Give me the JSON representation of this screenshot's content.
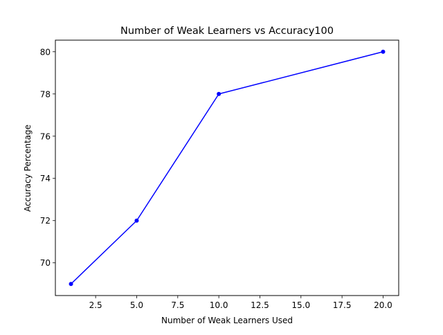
{
  "chart_data": {
    "type": "line",
    "title": "Number of Weak Learners vs Accuracy100",
    "xlabel": "Number of Weak Learners Used",
    "ylabel": "Accuracy Percentage",
    "x": [
      1,
      5,
      10,
      20
    ],
    "series": [
      {
        "values": [
          69,
          72,
          78,
          80
        ],
        "color": "#0000ff",
        "marker": "circle"
      }
    ],
    "xlim": [
      0.05,
      20.95
    ],
    "ylim": [
      68.45,
      80.55
    ],
    "xticks": [
      2.5,
      5.0,
      7.5,
      10.0,
      12.5,
      15.0,
      17.5,
      20.0
    ],
    "xtick_labels": [
      "2.5",
      "5.0",
      "7.5",
      "10.0",
      "12.5",
      "15.0",
      "17.5",
      "20.0"
    ],
    "yticks": [
      70,
      72,
      74,
      76,
      78,
      80
    ],
    "ytick_labels": [
      "70",
      "72",
      "74",
      "76",
      "78",
      "80"
    ],
    "grid": false,
    "legend": "none"
  }
}
